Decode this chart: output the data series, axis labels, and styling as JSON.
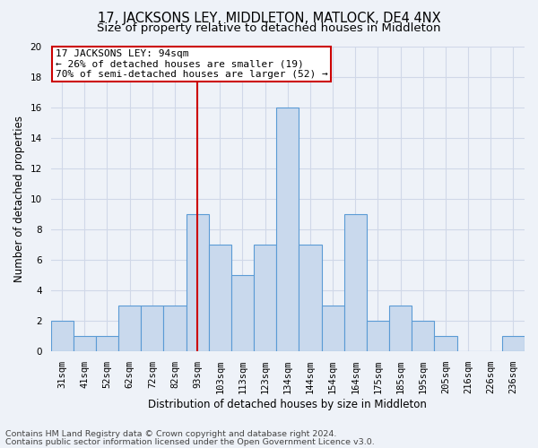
{
  "title": "17, JACKSONS LEY, MIDDLETON, MATLOCK, DE4 4NX",
  "subtitle": "Size of property relative to detached houses in Middleton",
  "xlabel": "Distribution of detached houses by size in Middleton",
  "ylabel": "Number of detached properties",
  "bar_labels": [
    "31sqm",
    "41sqm",
    "52sqm",
    "62sqm",
    "72sqm",
    "82sqm",
    "93sqm",
    "103sqm",
    "113sqm",
    "123sqm",
    "134sqm",
    "144sqm",
    "154sqm",
    "164sqm",
    "175sqm",
    "185sqm",
    "195sqm",
    "205sqm",
    "216sqm",
    "226sqm",
    "236sqm"
  ],
  "bar_values": [
    2,
    1,
    1,
    3,
    3,
    3,
    9,
    7,
    5,
    7,
    16,
    7,
    3,
    9,
    2,
    3,
    2,
    1,
    0,
    0,
    1
  ],
  "bar_color": "#c9d9ed",
  "bar_edge_color": "#5b9bd5",
  "vline_x_index": 6,
  "vline_color": "#cc0000",
  "ylim": [
    0,
    20
  ],
  "yticks": [
    0,
    2,
    4,
    6,
    8,
    10,
    12,
    14,
    16,
    18,
    20
  ],
  "annotation_text": "17 JACKSONS LEY: 94sqm\n← 26% of detached houses are smaller (19)\n70% of semi-detached houses are larger (52) →",
  "annotation_box_color": "#ffffff",
  "annotation_box_edge": "#cc0000",
  "footer_line1": "Contains HM Land Registry data © Crown copyright and database right 2024.",
  "footer_line2": "Contains public sector information licensed under the Open Government Licence v3.0.",
  "bg_color": "#eef2f8",
  "grid_color": "#d0d8e8",
  "title_fontsize": 10.5,
  "subtitle_fontsize": 9.5,
  "axis_label_fontsize": 8.5,
  "tick_fontsize": 7.5,
  "annotation_fontsize": 8,
  "footer_fontsize": 6.8
}
